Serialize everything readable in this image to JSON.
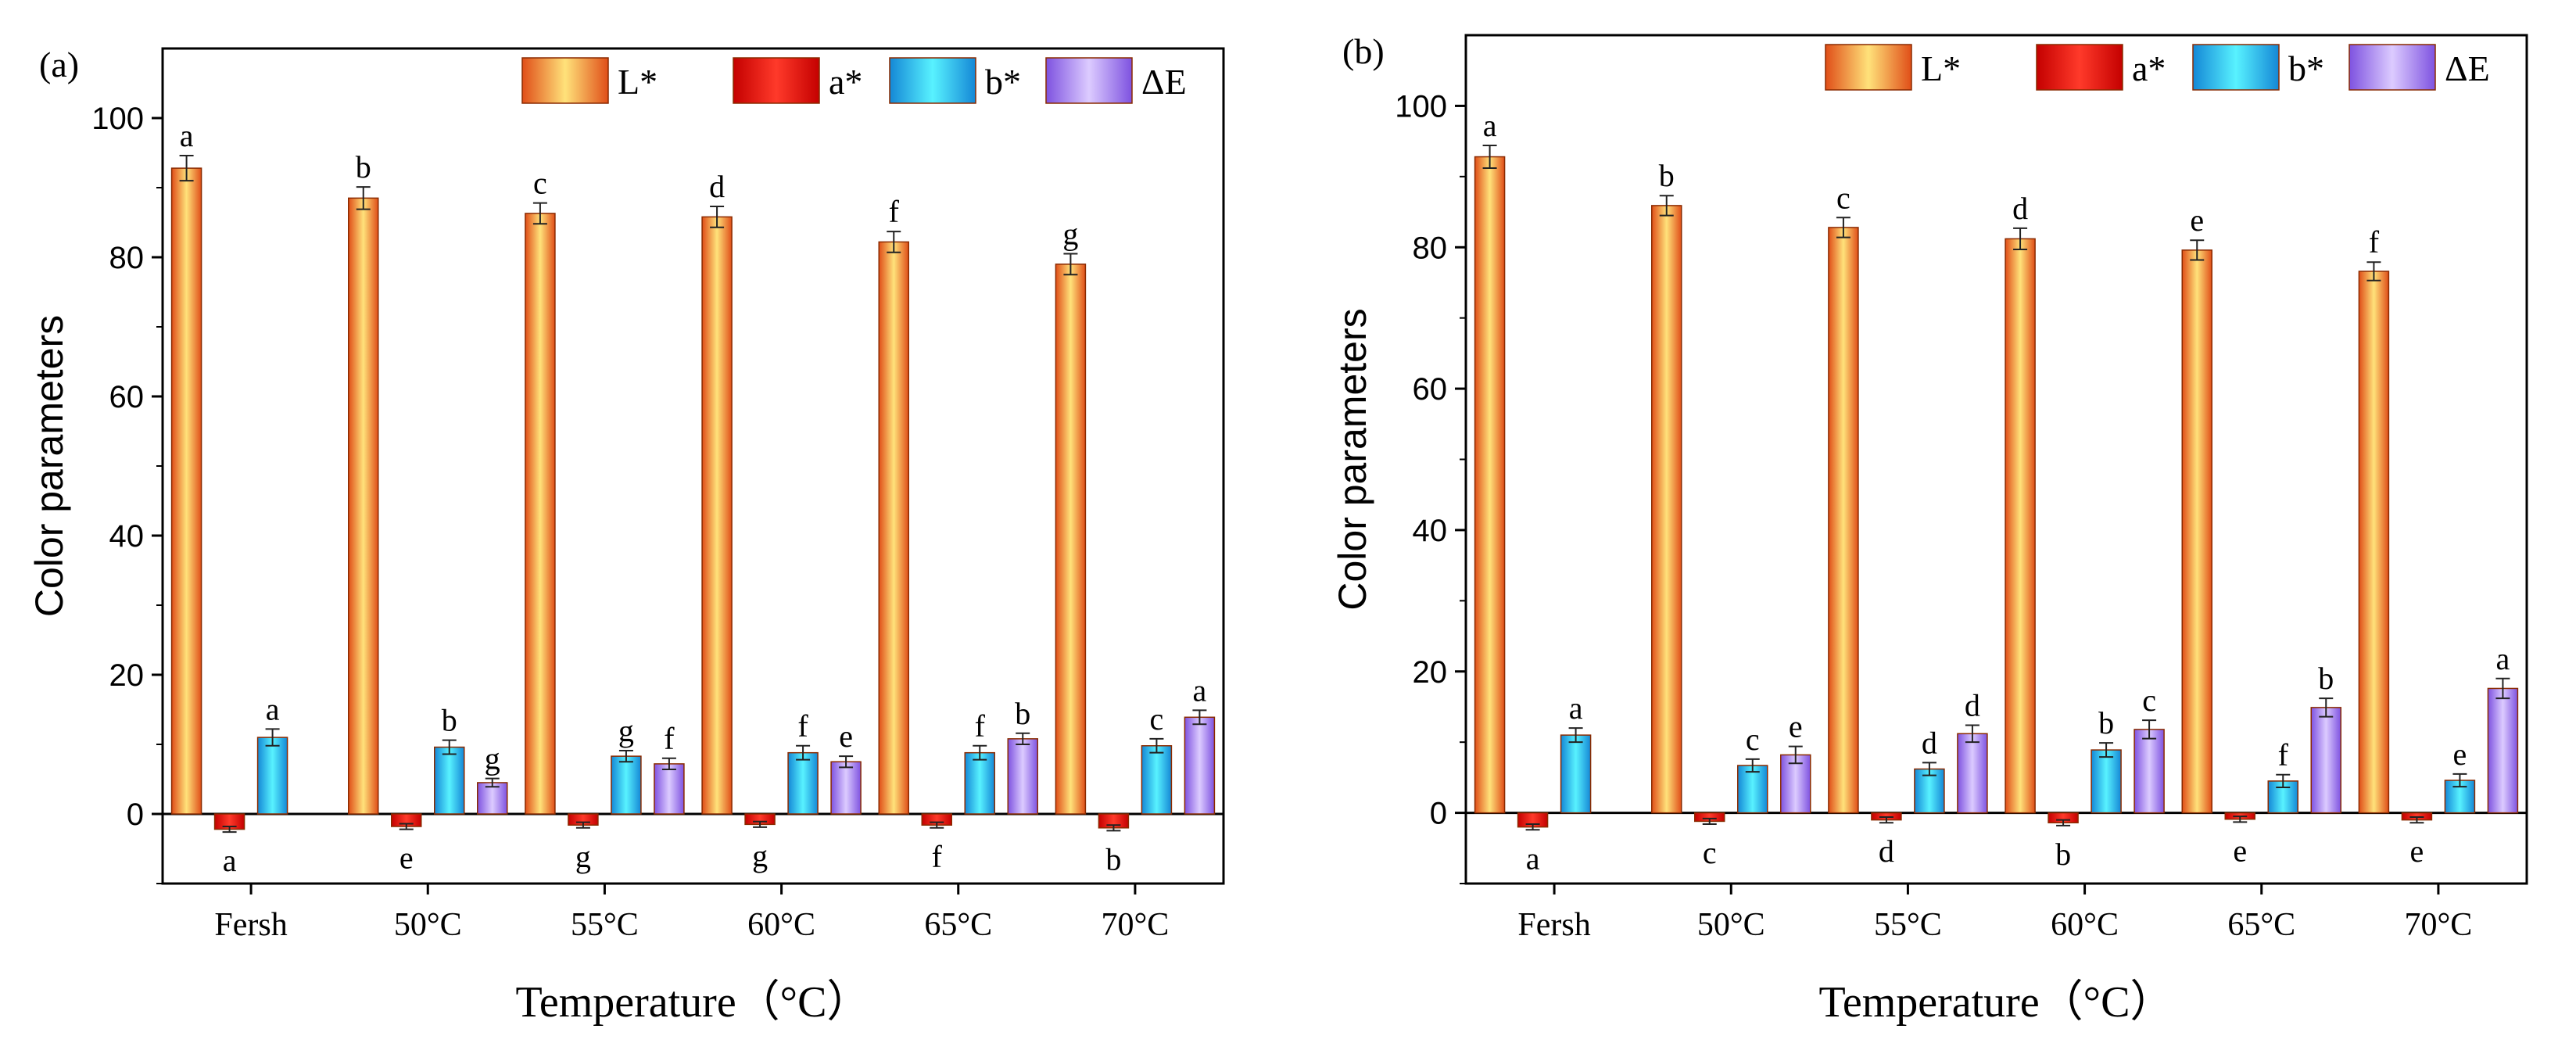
{
  "chart_data": [
    {
      "type": "bar",
      "panel_label": "(a)",
      "xlabel": "Temperature（°C）",
      "ylabel": "Color parameters",
      "ylim": [
        -10,
        110
      ],
      "yticks": [
        0,
        20,
        40,
        60,
        80,
        100
      ],
      "categories": [
        "Fersh",
        "50°C",
        "55°C",
        "60°C",
        "65°C",
        "70°C"
      ],
      "legend_position": "top-right",
      "series": [
        {
          "name": "L*",
          "color": "#f07a2c",
          "values": [
            92.8,
            88.5,
            86.3,
            85.8,
            82.2,
            79.0
          ],
          "errors": [
            1.8,
            1.6,
            1.5,
            1.5,
            1.5,
            1.5
          ],
          "labels": [
            "a",
            "b",
            "c",
            "d",
            "f",
            "g"
          ]
        },
        {
          "name": "a*",
          "color": "#ee1111",
          "values": [
            -2.2,
            -1.8,
            -1.6,
            -1.5,
            -1.6,
            -2.0
          ],
          "errors": [
            0.4,
            0.4,
            0.4,
            0.4,
            0.4,
            0.4
          ],
          "labels": [
            "a",
            "e",
            "g",
            "g",
            "f",
            "b"
          ]
        },
        {
          "name": "b*",
          "color": "#22c4ee",
          "values": [
            11.0,
            9.6,
            8.3,
            8.8,
            8.8,
            9.8
          ],
          "errors": [
            1.2,
            1.0,
            0.8,
            1.0,
            1.0,
            1.0
          ],
          "labels": [
            "a",
            "b",
            "g",
            "f",
            "f",
            "c"
          ]
        },
        {
          "name": "ΔE",
          "color": "#a27ef2",
          "values": [
            null,
            4.5,
            7.2,
            7.5,
            10.8,
            13.9
          ],
          "errors": [
            null,
            0.6,
            0.8,
            0.8,
            0.8,
            1.0
          ],
          "labels": [
            null,
            "g",
            "f",
            "e",
            "b",
            "a"
          ]
        }
      ]
    },
    {
      "type": "bar",
      "panel_label": "(b)",
      "xlabel": "Temperature（°C）",
      "ylabel": "Color parameters",
      "ylim": [
        -10,
        110
      ],
      "yticks": [
        0,
        20,
        40,
        60,
        80,
        100
      ],
      "categories": [
        "Fersh",
        "50°C",
        "55°C",
        "60°C",
        "65°C",
        "70°C"
      ],
      "legend_position": "top-right",
      "series": [
        {
          "name": "L*",
          "color": "#f07a2c",
          "values": [
            92.8,
            85.9,
            82.8,
            81.2,
            79.6,
            76.6
          ],
          "errors": [
            1.6,
            1.4,
            1.4,
            1.5,
            1.4,
            1.3
          ],
          "labels": [
            "a",
            "b",
            "c",
            "d",
            "e",
            "f"
          ]
        },
        {
          "name": "a*",
          "color": "#ee1111",
          "values": [
            -2.0,
            -1.2,
            -1.0,
            -1.4,
            -0.9,
            -1.0
          ],
          "errors": [
            0.4,
            0.4,
            0.4,
            0.4,
            0.4,
            0.4
          ],
          "labels": [
            "a",
            "c",
            "d",
            "b",
            "e",
            "e"
          ]
        },
        {
          "name": "b*",
          "color": "#22c4ee",
          "values": [
            11.0,
            6.7,
            6.2,
            8.9,
            4.5,
            4.6
          ],
          "errors": [
            1.0,
            0.9,
            0.9,
            1.0,
            0.9,
            0.9
          ],
          "labels": [
            "a",
            "c",
            "d",
            "b",
            "f",
            "e"
          ]
        },
        {
          "name": "ΔE",
          "color": "#a27ef2",
          "values": [
            null,
            8.2,
            11.2,
            11.8,
            14.9,
            17.6
          ],
          "errors": [
            null,
            1.2,
            1.2,
            1.3,
            1.3,
            1.4
          ],
          "labels": [
            null,
            "e",
            "d",
            "c",
            "b",
            "a"
          ]
        }
      ]
    }
  ]
}
